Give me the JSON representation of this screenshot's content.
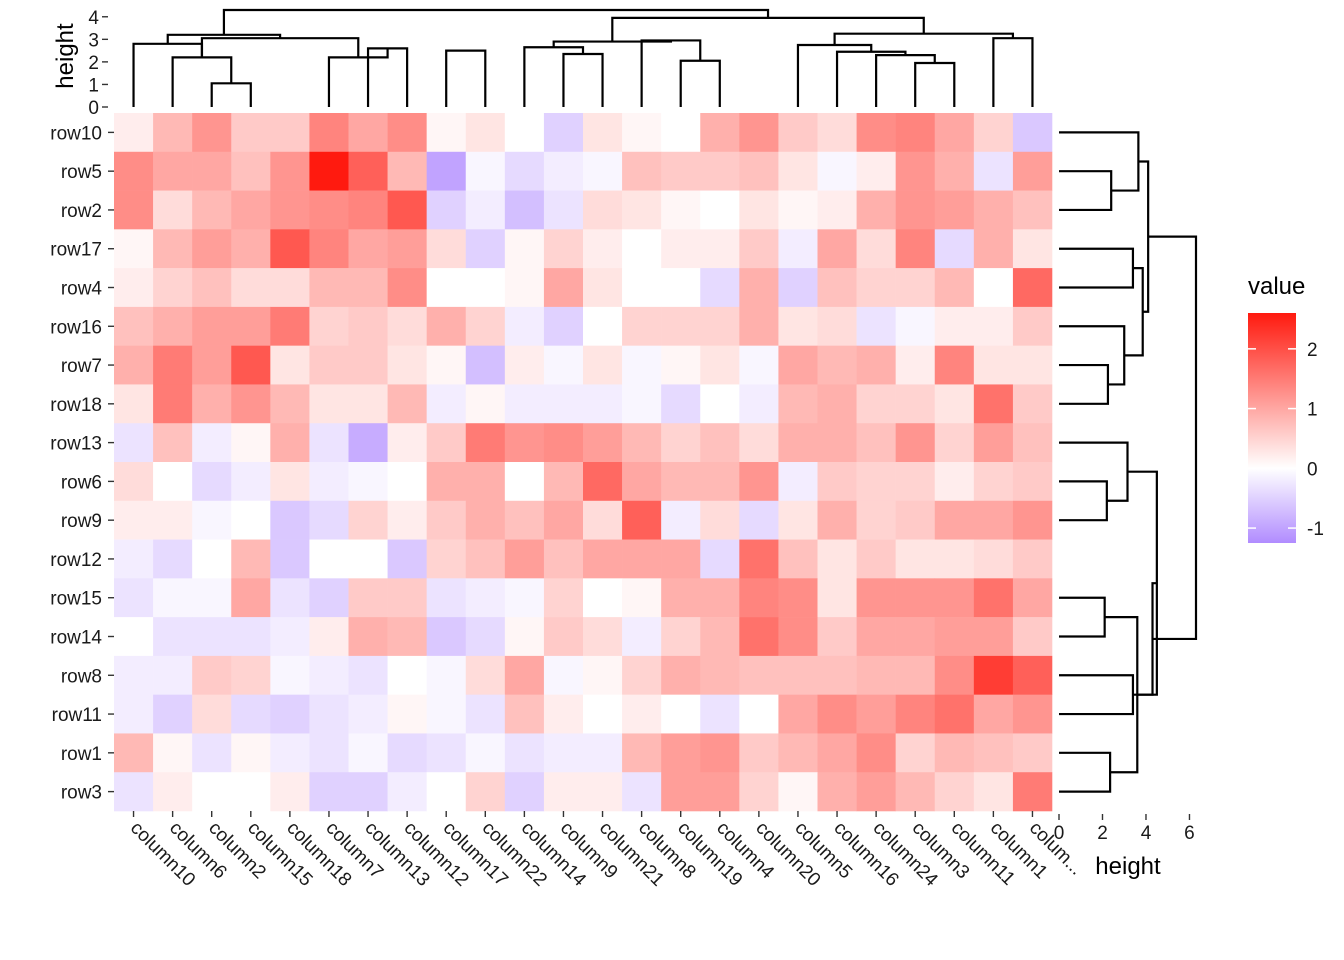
{
  "chart_data": {
    "type": "heatmap",
    "title": "",
    "columns": [
      "column10",
      "column6",
      "column2",
      "column15",
      "column18",
      "column7",
      "column13",
      "column12",
      "column17",
      "column22",
      "column14",
      "column9",
      "column21",
      "column8",
      "column19",
      "column4",
      "column20",
      "column5",
      "column16",
      "column24",
      "column3",
      "column11",
      "column1",
      "colum..."
    ],
    "rows": [
      "row10",
      "row5",
      "row2",
      "row17",
      "row4",
      "row16",
      "row7",
      "row18",
      "row13",
      "row6",
      "row9",
      "row12",
      "row15",
      "row14",
      "row8",
      "row11",
      "row1",
      "row3"
    ],
    "values": [
      [
        0.2,
        0.8,
        1.2,
        0.6,
        0.6,
        1.4,
        1.0,
        1.3,
        0.1,
        0.3,
        0.0,
        -0.5,
        0.3,
        0.1,
        0.0,
        0.9,
        1.2,
        0.6,
        0.4,
        1.3,
        1.4,
        1.0,
        0.5,
        -0.6
      ],
      [
        1.3,
        1.0,
        1.0,
        0.7,
        1.2,
        2.6,
        1.8,
        0.8,
        -1.0,
        -0.1,
        -0.4,
        -0.2,
        -0.1,
        0.7,
        0.6,
        0.6,
        0.7,
        0.3,
        -0.1,
        0.2,
        1.2,
        0.9,
        -0.3,
        1.1
      ],
      [
        1.3,
        0.4,
        0.8,
        1.0,
        1.2,
        1.3,
        1.4,
        1.9,
        -0.5,
        -0.2,
        -0.7,
        -0.3,
        0.4,
        0.3,
        0.1,
        0.0,
        0.3,
        0.1,
        0.2,
        0.9,
        1.2,
        1.1,
        0.9,
        0.7
      ],
      [
        0.1,
        0.8,
        1.1,
        0.9,
        1.9,
        1.4,
        1.0,
        1.1,
        0.4,
        -0.5,
        0.1,
        0.5,
        0.2,
        0.0,
        0.2,
        0.2,
        0.6,
        -0.2,
        1.0,
        0.4,
        1.4,
        -0.4,
        0.9,
        0.3
      ],
      [
        0.2,
        0.5,
        0.7,
        0.4,
        0.4,
        0.8,
        0.8,
        1.3,
        0.0,
        0.0,
        0.1,
        1.0,
        0.3,
        0.0,
        0.0,
        -0.4,
        0.9,
        -0.5,
        0.7,
        0.5,
        0.5,
        0.8,
        0.0,
        1.7
      ],
      [
        0.7,
        0.9,
        1.1,
        1.1,
        1.5,
        0.5,
        0.6,
        0.4,
        0.9,
        0.5,
        -0.2,
        -0.5,
        0.0,
        0.5,
        0.5,
        0.5,
        0.9,
        0.3,
        0.4,
        -0.3,
        -0.1,
        0.2,
        0.2,
        0.6
      ],
      [
        0.9,
        1.5,
        1.1,
        1.9,
        0.3,
        0.6,
        0.6,
        0.3,
        0.1,
        -0.7,
        0.2,
        -0.1,
        0.3,
        -0.1,
        0.1,
        0.3,
        -0.1,
        1.0,
        0.8,
        0.9,
        0.2,
        1.4,
        0.3,
        0.3
      ],
      [
        0.3,
        1.5,
        0.9,
        1.2,
        0.8,
        0.3,
        0.3,
        0.8,
        -0.2,
        0.1,
        -0.2,
        -0.2,
        -0.2,
        -0.1,
        -0.4,
        0.0,
        -0.2,
        0.8,
        0.9,
        0.5,
        0.5,
        0.3,
        1.6,
        0.6
      ],
      [
        -0.3,
        0.7,
        -0.2,
        0.1,
        0.9,
        -0.3,
        -0.9,
        0.2,
        0.6,
        1.5,
        1.2,
        1.3,
        1.1,
        0.8,
        0.5,
        0.7,
        0.4,
        0.9,
        0.9,
        0.7,
        1.2,
        0.5,
        1.1,
        0.7
      ],
      [
        0.4,
        0.0,
        -0.4,
        -0.2,
        0.3,
        -0.2,
        -0.1,
        0.0,
        0.9,
        0.9,
        0.0,
        0.8,
        1.7,
        1.0,
        0.8,
        0.8,
        1.2,
        -0.2,
        0.6,
        0.5,
        0.5,
        0.2,
        0.5,
        0.6
      ],
      [
        0.2,
        0.2,
        -0.1,
        0.0,
        -0.6,
        -0.4,
        0.5,
        0.2,
        0.6,
        0.9,
        0.7,
        1.0,
        0.4,
        1.8,
        -0.2,
        0.4,
        -0.4,
        0.3,
        0.9,
        0.5,
        0.6,
        1.0,
        1.0,
        1.2
      ],
      [
        -0.2,
        -0.4,
        0.0,
        0.8,
        -0.6,
        0.0,
        0.0,
        -0.6,
        0.5,
        0.7,
        1.1,
        0.7,
        1.0,
        1.0,
        1.0,
        -0.4,
        1.6,
        0.7,
        0.3,
        0.6,
        0.3,
        0.3,
        0.4,
        0.6
      ],
      [
        -0.3,
        -0.1,
        -0.1,
        1.0,
        -0.3,
        -0.5,
        0.6,
        0.6,
        -0.3,
        -0.2,
        -0.1,
        0.5,
        0.0,
        0.1,
        0.9,
        0.9,
        1.4,
        1.3,
        0.3,
        1.2,
        1.2,
        1.2,
        1.6,
        1.0
      ],
      [
        0.0,
        -0.3,
        -0.3,
        -0.3,
        -0.2,
        0.2,
        0.9,
        0.8,
        -0.6,
        -0.4,
        0.1,
        0.6,
        0.4,
        -0.2,
        0.5,
        0.8,
        1.6,
        1.3,
        0.6,
        1.0,
        1.0,
        1.1,
        1.1,
        0.6
      ],
      [
        -0.2,
        -0.2,
        0.6,
        0.5,
        -0.1,
        -0.2,
        -0.3,
        0.0,
        -0.1,
        0.4,
        1.0,
        -0.1,
        0.1,
        0.5,
        0.9,
        0.8,
        0.7,
        0.7,
        0.7,
        0.8,
        0.8,
        1.3,
        2.2,
        1.8
      ],
      [
        -0.2,
        -0.5,
        0.4,
        -0.4,
        -0.5,
        -0.3,
        -0.2,
        0.1,
        -0.1,
        -0.3,
        0.7,
        0.2,
        0.0,
        0.2,
        0.0,
        -0.3,
        0.0,
        1.0,
        1.3,
        1.1,
        1.4,
        1.6,
        1.0,
        1.2
      ],
      [
        0.8,
        0.1,
        -0.3,
        0.1,
        -0.2,
        -0.3,
        -0.1,
        -0.4,
        -0.3,
        -0.1,
        -0.3,
        -0.2,
        -0.2,
        0.8,
        1.1,
        1.2,
        0.6,
        0.8,
        1.0,
        1.3,
        0.5,
        0.8,
        0.7,
        0.6
      ],
      [
        -0.3,
        0.2,
        0.0,
        0.0,
        0.2,
        -0.5,
        -0.5,
        -0.2,
        0.0,
        0.5,
        -0.5,
        0.2,
        0.2,
        -0.3,
        1.1,
        1.1,
        0.5,
        0.1,
        0.9,
        1.1,
        0.8,
        0.5,
        0.3,
        1.5
      ]
    ],
    "color_scale": {
      "low": "#b18cff",
      "mid": "#ffffff",
      "high": "#ff1a0f",
      "min": -1.25,
      "max": 2.6
    },
    "legend": {
      "title": "value",
      "ticks": [
        2,
        1,
        0,
        -1
      ],
      "placement": "right"
    },
    "top_dendrogram": {
      "axis_label": "height",
      "ticks": [
        0,
        1,
        2,
        3,
        4
      ],
      "ylim": [
        0,
        4.3
      ]
    },
    "right_dendrogram": {
      "axis_label": "height",
      "ticks": [
        0,
        2,
        4,
        6
      ],
      "xlim": [
        0,
        6.3
      ]
    }
  }
}
